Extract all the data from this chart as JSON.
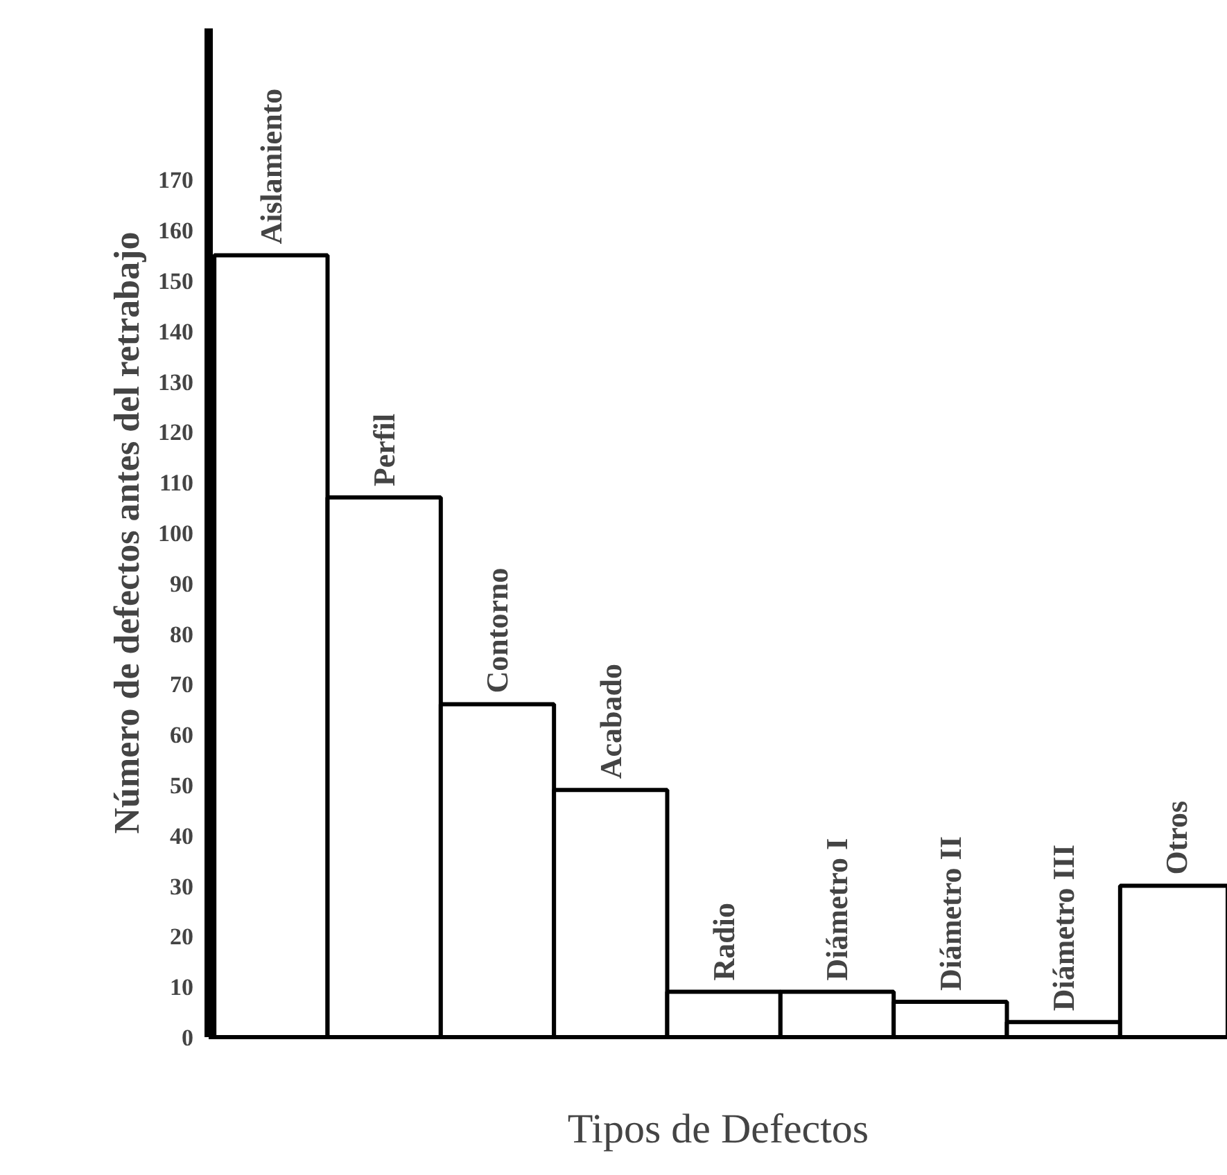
{
  "chart_data": {
    "type": "bar",
    "xlabel": "Tipos de Defectos",
    "ylabel": "Número de defectos antes del retrabajo",
    "categories": [
      "Aislamiento",
      "Perfil",
      "Contorno",
      "Acabado",
      "Radio",
      "Diámetro I",
      "Diámetro II",
      "Diámetro III",
      "Otros"
    ],
    "values": [
      155,
      107,
      66,
      49,
      9,
      9,
      7,
      3,
      30
    ],
    "color": "#ffffff",
    "ylim": [
      0,
      200
    ],
    "yticks": [
      0,
      10,
      20,
      30,
      40,
      50,
      60,
      70,
      80,
      90,
      100,
      110,
      120,
      130,
      140,
      150,
      160,
      170
    ],
    "grid": false
  }
}
